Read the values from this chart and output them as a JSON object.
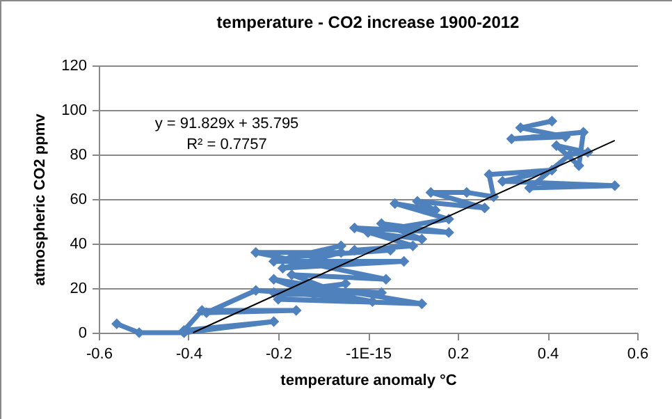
{
  "chart_data": {
    "type": "line",
    "title": "temperature - CO2 increase 1900-2012",
    "xlabel": "temperature anomaly °C",
    "ylabel": "atmospheric CO2 ppmv",
    "xlim": [
      -0.6,
      0.6
    ],
    "xticks": [
      -0.6,
      -0.4,
      -0.2,
      {
        "value": 0,
        "label": "-1E-15"
      },
      0.2,
      0.4,
      0.6
    ],
    "ylim": [
      0,
      120
    ],
    "yticks": [
      0,
      20,
      40,
      60,
      80,
      100,
      120
    ],
    "grid": "y",
    "marker": "diamond",
    "annotations": [
      "y = 91.829x + 35.795",
      "R² = 0.7757"
    ],
    "series": [
      {
        "color": "#4f81bd",
        "x": [
          -0.56,
          -0.51,
          -0.41,
          -0.21,
          -0.41,
          -0.37,
          -0.16,
          -0.36,
          -0.25,
          -0.12,
          -0.21,
          0.12,
          -0.2,
          0.01,
          -0.15,
          0.03,
          -0.19,
          -0.05,
          -0.21,
          -0.04,
          -0.17,
          0.04,
          -0.25,
          -0.06,
          -0.19,
          0.08,
          -0.21,
          -0.06,
          -0.17,
          0.05,
          -0.03,
          0.1,
          -0.03,
          0.18,
          0.03,
          0.12,
          0.0,
          0.18,
          0.06,
          0.15,
          0.11,
          0.26,
          0.14,
          0.22,
          0.28,
          0.27,
          0.41,
          0.3,
          0.55,
          0.36,
          0.45,
          0.49,
          0.42,
          0.47,
          0.48,
          0.32,
          0.44,
          0.34,
          0.41
        ],
        "values": [
          4,
          0,
          0,
          5,
          1,
          10,
          10,
          9,
          19,
          17,
          24,
          13,
          15,
          14,
          20,
          18,
          17,
          22,
          18,
          16,
          26,
          24,
          36,
          36,
          29,
          32,
          32,
          39,
          34,
          37,
          37,
          39,
          47,
          45,
          49,
          42,
          45,
          51,
          58,
          55,
          59,
          56,
          63,
          63,
          61,
          71,
          73,
          68,
          66,
          65,
          80,
          81,
          84,
          75,
          90,
          87,
          88,
          92,
          95
        ]
      },
      {
        "type": "line",
        "color": "#000000",
        "marker": "none",
        "x": [
          -0.39,
          0.55
        ],
        "values": [
          0,
          86.3
        ]
      }
    ]
  }
}
